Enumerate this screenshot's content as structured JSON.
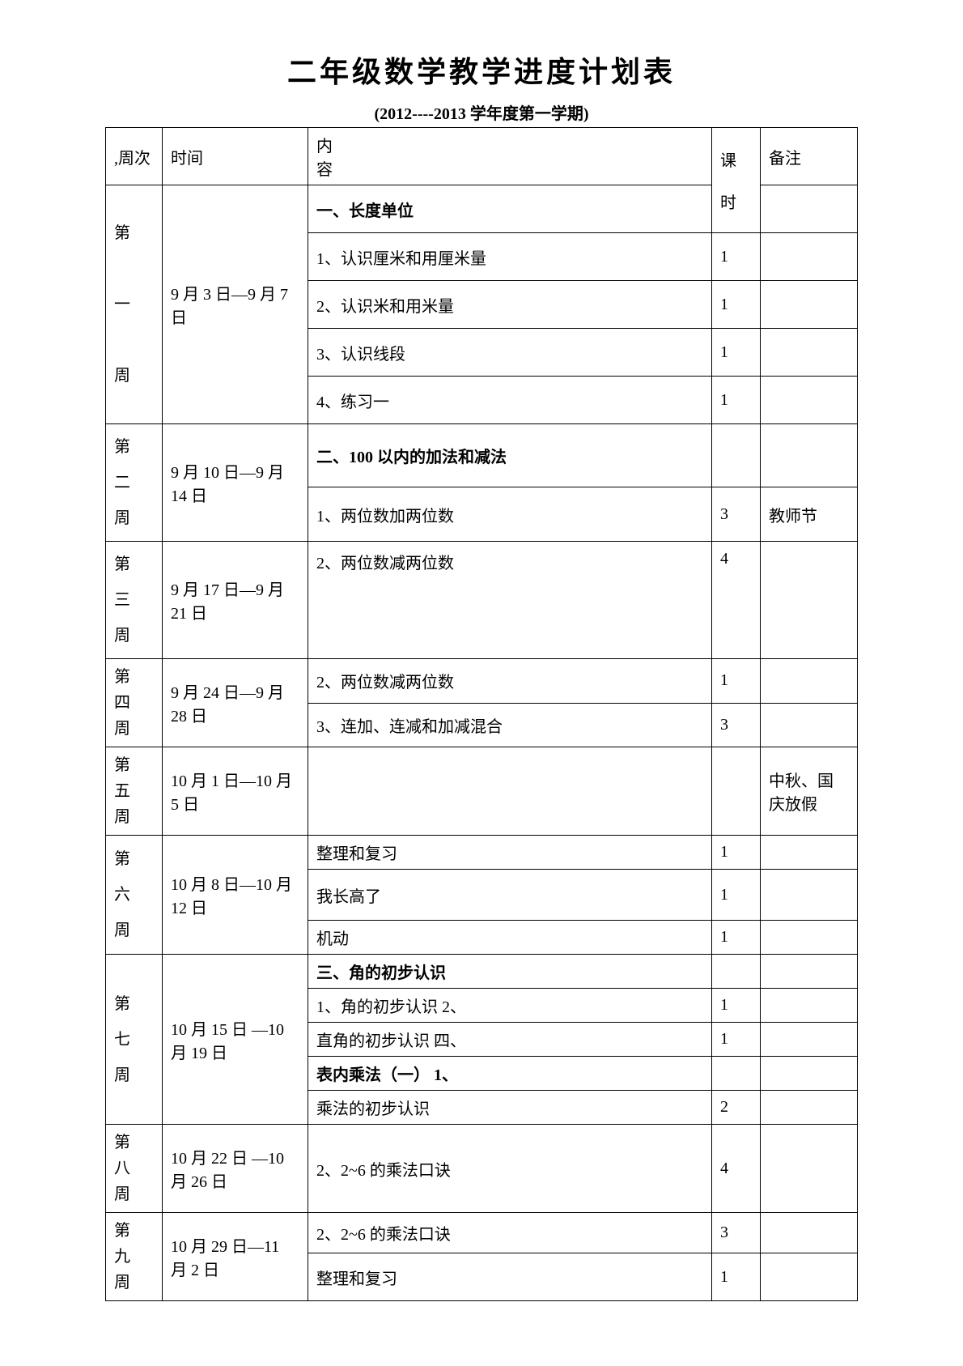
{
  "title": "二年级数学教学进度计划表",
  "subtitle": "(2012----2013 学年度第一学期)",
  "headers": {
    "week": ",周次",
    "time": "时间",
    "content_top": "内",
    "content_bottom": "容",
    "hours_top": "课",
    "hours_bottom": "时",
    "note": "备注"
  },
  "weeks": {
    "w1": {
      "label_1": "第",
      "label_2": "一",
      "label_3": "周",
      "time": "9 月 3 日—9 月 7 日"
    },
    "w2": {
      "label": "第 二 周",
      "time": "9 月 10 日—9 月 14 日"
    },
    "w3": {
      "label": "第 三 周",
      "time": "9 月 17 日—9 月 21 日"
    },
    "w4": {
      "label": "第 四 周",
      "time": "9 月 24 日—9 月 28 日"
    },
    "w5": {
      "label": "第 五 周",
      "time": "10 月 1 日—10 月 5 日"
    },
    "w6": {
      "label": "第 六 周",
      "time": "10 月 8 日—10 月 12 日"
    },
    "w7": {
      "label": "第 七 周",
      "time": "10 月 15 日 —10 月 19 日"
    },
    "w8": {
      "label": "第 八 周",
      "time": "10 月 22 日 —10 月 26 日"
    },
    "w9": {
      "label": "第 九 周",
      "time": "10 月 29 日—11 月 2 日"
    }
  },
  "rows": {
    "r1": {
      "content": "一、长度单位",
      "hours": "",
      "note": ""
    },
    "r2": {
      "content": "1、认识厘米和用厘米量",
      "hours": "1",
      "note": ""
    },
    "r3": {
      "content": "2、认识米和用米量",
      "hours": "1",
      "note": ""
    },
    "r4": {
      "content": "3、认识线段",
      "hours": "1",
      "note": ""
    },
    "r5": {
      "content": "4、练习一",
      "hours": "1",
      "note": ""
    },
    "r6": {
      "content": "二、100 以内的加法和减法",
      "hours": "",
      "note": ""
    },
    "r7": {
      "content": "1、两位数加两位数",
      "hours": "3",
      "note": "教师节"
    },
    "r8": {
      "content": "2、两位数减两位数",
      "hours": "4",
      "note": ""
    },
    "r9": {
      "content": "2、两位数减两位数",
      "hours": "1",
      "note": ""
    },
    "r10": {
      "content": "3、连加、连减和加减混合",
      "hours": "3",
      "note": ""
    },
    "r11": {
      "content": "",
      "hours": "",
      "note": "中秋、国庆放假"
    },
    "r12": {
      "content": "整理和复习",
      "hours": "1",
      "note": ""
    },
    "r13": {
      "content": "我长高了",
      "hours": "1",
      "note": ""
    },
    "r14": {
      "content": "机动",
      "hours": "1",
      "note": ""
    },
    "r15": {
      "content": "三、角的初步认识",
      "hours": "",
      "note": ""
    },
    "r16a": {
      "content": "1、角的初步认识 2、",
      "hours": "1",
      "note": ""
    },
    "r16b": {
      "content": "直角的初步认识 四、",
      "hours": "1",
      "note": ""
    },
    "r16c": {
      "content": "表内乘法（一） 1、",
      "hours": "",
      "note": ""
    },
    "r16d": {
      "content": "乘法的初步认识",
      "hours": "2",
      "note": ""
    },
    "r17": {
      "content": "2、2~6 的乘法口诀",
      "hours": "4",
      "note": ""
    },
    "r18": {
      "content": "2、2~6 的乘法口诀",
      "hours": "3",
      "note": ""
    },
    "r19": {
      "content": "整理和复习",
      "hours": "1",
      "note": ""
    }
  }
}
